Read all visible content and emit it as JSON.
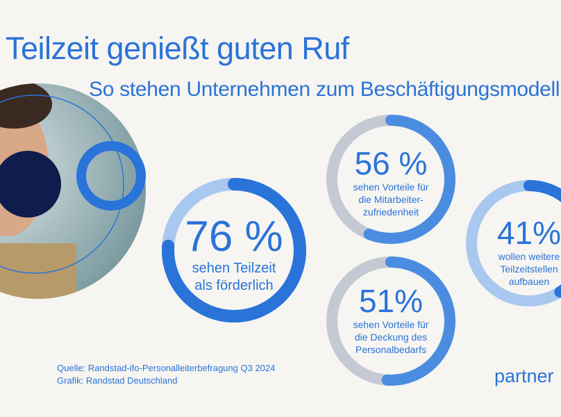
{
  "title": "Teilzeit genießt guten Ruf",
  "subtitle": "So stehen Unternehmen zum Beschäftigungsmodell",
  "colors": {
    "accent": "#2a73d9",
    "progress_light": "#4a8de0",
    "track_light": "#a9c8f0",
    "track_gray": "#c5c9d3",
    "navy": "#0f1d4d",
    "background": "#f6f5f1"
  },
  "chart_data": {
    "type": "donut",
    "items": [
      {
        "value": 76,
        "label": "76 %",
        "desc": [
          "sehen Teilzeit",
          "als förderlich"
        ]
      },
      {
        "value": 56,
        "label": "56 %",
        "desc": [
          "sehen Vorteile für",
          "die Mitarbeiter-",
          "zufriedenheit"
        ]
      },
      {
        "value": 51,
        "label": "51%",
        "desc": [
          "sehen Vorteile für",
          "die Deckung des",
          "Personalbedarfs"
        ]
      },
      {
        "value": 41,
        "label": "41%",
        "desc": [
          "wollen weitere",
          "Teilzeitstellen",
          "aufbauen"
        ]
      }
    ]
  },
  "source": [
    "Quelle: Randstad-ifo-Personalleiterbefragung Q3 2024",
    "Grafik: Randstad Deutschland"
  ],
  "brand": "partner"
}
